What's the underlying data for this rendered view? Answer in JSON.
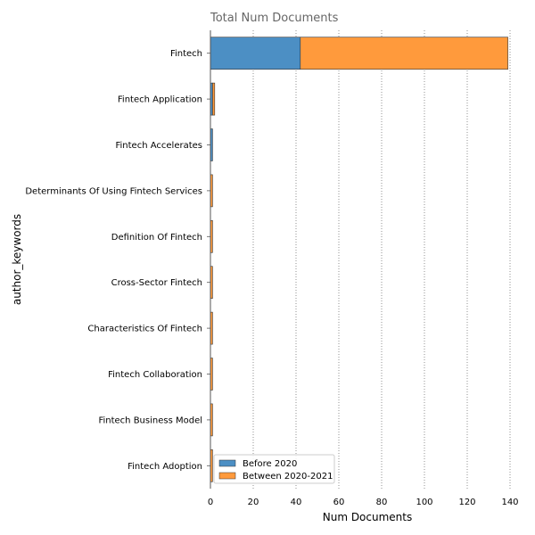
{
  "chart_data": {
    "type": "bar",
    "orientation": "horizontal",
    "stacked": true,
    "title": "Total Num Documents",
    "xlabel": "Num Documents",
    "ylabel": "author_keywords",
    "xlim": [
      0,
      140
    ],
    "xticks": [
      0,
      20,
      40,
      60,
      80,
      100,
      120,
      140
    ],
    "grid": "x dotted",
    "legend_position": "lower-left",
    "categories": [
      "Fintech",
      "Fintech Application",
      "Fintech Accelerates",
      "Determinants Of Using Fintech Services",
      "Definition Of Fintech",
      "Cross-Sector Fintech",
      "Characteristics Of Fintech",
      "Fintech Collaboration",
      "Fintech Business Model",
      "Fintech Adoption"
    ],
    "series": [
      {
        "name": "Before 2020",
        "color": "#4c8fc4",
        "values": [
          42,
          1,
          1,
          0,
          0,
          0,
          0,
          0,
          0,
          0
        ]
      },
      {
        "name": "Between 2020-2021",
        "color": "#ff9a3c",
        "values": [
          97,
          1,
          0,
          1,
          1,
          1,
          1,
          1,
          1,
          1
        ]
      }
    ]
  }
}
